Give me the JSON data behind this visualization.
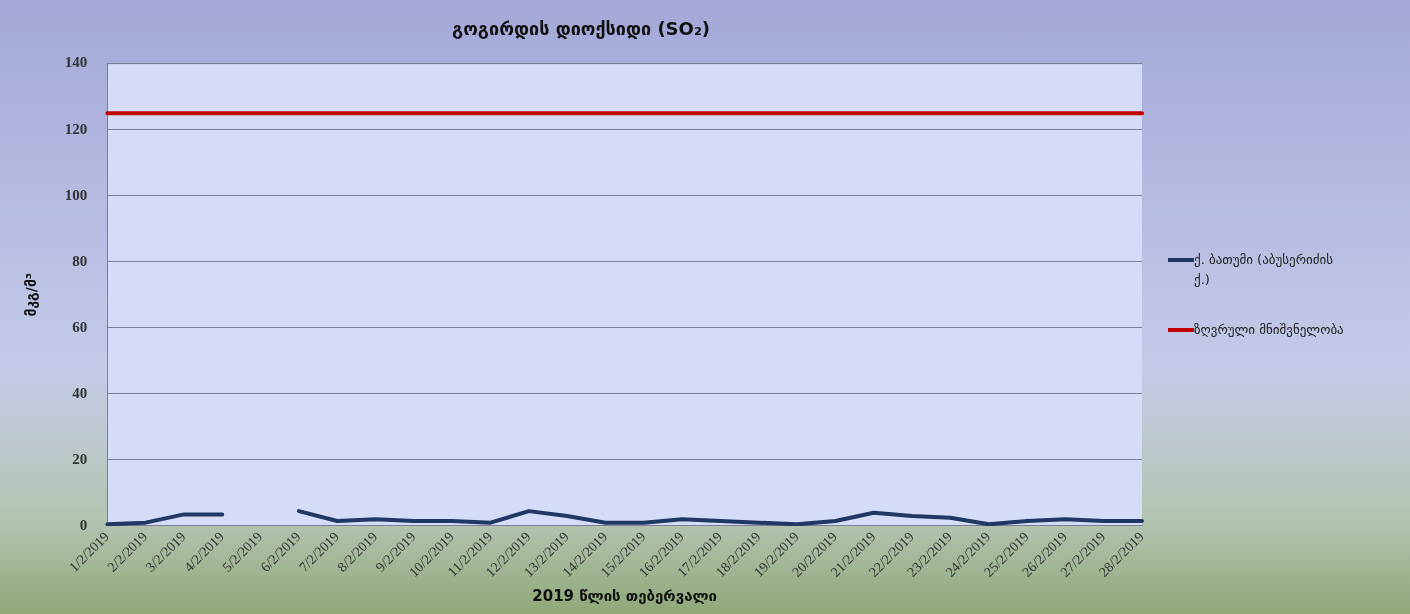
{
  "chart_data": {
    "type": "line",
    "title": "გოგირდის დიოქსიდი (SO₂)",
    "xlabel": "2019 წლის თებერვალი",
    "ylabel": "მკგ/მ³",
    "categories": [
      "1/2/2019",
      "2/2/2019",
      "3/2/2019",
      "4/2/2019",
      "5/2/2019",
      "6/2/2019",
      "7/2/2019",
      "8/2/2019",
      "9/2/2019",
      "10/2/2019",
      "11/2/2019",
      "12/2/2019",
      "13/2/2019",
      "14/2/2019",
      "15/2/2019",
      "16/2/2019",
      "17/2/2019",
      "18/2/2019",
      "19/2/2019",
      "20/2/2019",
      "21/2/2019",
      "22/2/2019",
      "23/2/2019",
      "24/2/2019",
      "25/2/2019",
      "26/2/2019",
      "27/2/2019",
      "28/2/2019"
    ],
    "series": [
      {
        "name": "ქ. ბათუმი (აბუსერიძის ქ.)",
        "color": "#1f3864",
        "values": [
          0.5,
          1,
          3.5,
          3.5,
          null,
          4.5,
          1.5,
          2,
          1.5,
          1.5,
          1,
          4.5,
          3,
          1,
          1,
          2,
          1.5,
          1,
          0.5,
          1.5,
          4,
          3,
          2.5,
          0.5,
          1.5,
          2,
          1.5,
          1.5
        ]
      },
      {
        "name": "ზღვრული მნიშვნელობა",
        "color": "#c00000",
        "values": [
          125,
          125,
          125,
          125,
          125,
          125,
          125,
          125,
          125,
          125,
          125,
          125,
          125,
          125,
          125,
          125,
          125,
          125,
          125,
          125,
          125,
          125,
          125,
          125,
          125,
          125,
          125,
          125
        ]
      }
    ],
    "ylim": [
      0,
      140
    ],
    "yticks": [
      0,
      20,
      40,
      60,
      80,
      100,
      120,
      140
    ],
    "grid": "y",
    "legend": "right",
    "marker": "none",
    "line_style": "solid"
  }
}
